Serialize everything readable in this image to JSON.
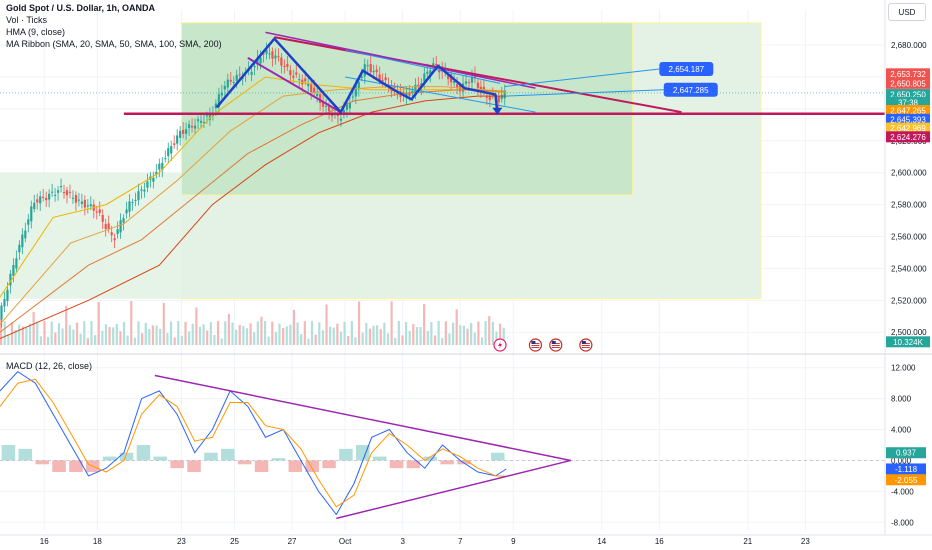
{
  "header": {
    "title": "Gold Spot / U.S. Dollar, 1h, OANDA",
    "indicators": [
      "Vol · Ticks",
      "HMA (9, close)",
      "MA Ribbon (SMA, 20, SMA, 50, SMA, 100, SMA, 200)"
    ],
    "currency_button": "USD"
  },
  "colors": {
    "up": "#26a69a",
    "down": "#ef5350",
    "zone_fill": "#c8e6c9",
    "zone_border": "#fff59d",
    "support": "#c2185b",
    "wedge": "#9c27b0",
    "hma": "#2962ff",
    "channel": "#2196f3",
    "macd_line": "#2962ff",
    "signal_line": "#ff9800",
    "triangle": "#9c27b0"
  },
  "chart_data": [
    {
      "type": "line",
      "name": "price",
      "ylim": [
        2492,
        2702
      ],
      "x_range": [
        0,
        100
      ],
      "y_ticks": [
        2500,
        2520,
        2540,
        2560,
        2580,
        2600,
        2620,
        2640,
        2660,
        2680
      ],
      "y_tick_labels": [
        "2,500.000",
        "2,520.000",
        "2,540.000",
        "2,560.000",
        "2,580.000",
        "2,600.000",
        "2,620.000",
        "2,640.000",
        "2,660.000",
        "2,680.000"
      ],
      "x_ticks": [
        {
          "x": 5,
          "label": "16"
        },
        {
          "x": 11,
          "label": "18"
        },
        {
          "x": 20.5,
          "label": "23"
        },
        {
          "x": 26.5,
          "label": "25"
        },
        {
          "x": 33,
          "label": "27"
        },
        {
          "x": 39,
          "label": "Oct"
        },
        {
          "x": 45.5,
          "label": "3"
        },
        {
          "x": 52,
          "label": "7"
        },
        {
          "x": 58,
          "label": "9"
        },
        {
          "x": 68,
          "label": "14"
        },
        {
          "x": 74.5,
          "label": "16"
        },
        {
          "x": 84.5,
          "label": "21"
        },
        {
          "x": 91,
          "label": "23"
        }
      ],
      "price_path": [
        [
          0,
          2508
        ],
        [
          2,
          2548
        ],
        [
          4,
          2582
        ],
        [
          5.5,
          2585
        ],
        [
          7,
          2590
        ],
        [
          9,
          2582
        ],
        [
          11,
          2577
        ],
        [
          13,
          2558
        ],
        [
          14.5,
          2578
        ],
        [
          16,
          2588
        ],
        [
          18,
          2602
        ],
        [
          19,
          2612
        ],
        [
          20.5,
          2625
        ],
        [
          22,
          2630
        ],
        [
          24,
          2636
        ],
        [
          25.5,
          2655
        ],
        [
          27,
          2660
        ],
        [
          28.5,
          2664
        ],
        [
          30,
          2676
        ],
        [
          31.5,
          2672
        ],
        [
          33,
          2662
        ],
        [
          35,
          2655
        ],
        [
          37,
          2640
        ],
        [
          38.5,
          2634
        ],
        [
          40,
          2648
        ],
        [
          41.5,
          2668
        ],
        [
          43,
          2660
        ],
        [
          44.5,
          2652
        ],
        [
          46,
          2648
        ],
        [
          47.5,
          2655
        ],
        [
          49,
          2668
        ],
        [
          50.5,
          2662
        ],
        [
          52,
          2652
        ],
        [
          53.5,
          2660
        ],
        [
          55,
          2648
        ],
        [
          56.5,
          2646
        ],
        [
          57.2,
          2650
        ]
      ],
      "ma_ribbon": [
        {
          "name": "SMA 20",
          "color": "#f0b400",
          "values": [
            [
              0,
              2522
            ],
            [
              6,
              2572
            ],
            [
              12,
              2580
            ],
            [
              18,
              2600
            ],
            [
              24,
              2636
            ],
            [
              30,
              2660
            ],
            [
              36,
              2655
            ],
            [
              42,
              2652
            ],
            [
              48,
              2652
            ],
            [
              54,
              2652
            ],
            [
              57.2,
              2650
            ]
          ]
        },
        {
          "name": "SMA 50",
          "color": "#e6a23c",
          "values": [
            [
              0,
              2505
            ],
            [
              8,
              2556
            ],
            [
              14,
              2568
            ],
            [
              20,
              2595
            ],
            [
              26,
              2626
            ],
            [
              32,
              2648
            ],
            [
              38,
              2652
            ],
            [
              44,
              2654
            ],
            [
              50,
              2654
            ],
            [
              57.2,
              2651
            ]
          ]
        },
        {
          "name": "SMA 100",
          "color": "#e07b39",
          "values": [
            [
              0,
              2500
            ],
            [
              10,
              2542
            ],
            [
              16,
              2558
            ],
            [
              22,
              2585
            ],
            [
              28,
              2612
            ],
            [
              34,
              2630
            ],
            [
              40,
              2645
            ],
            [
              46,
              2650
            ],
            [
              52,
              2652
            ],
            [
              57.2,
              2651
            ]
          ]
        },
        {
          "name": "SMA 200",
          "color": "#d84315",
          "values": [
            [
              0,
              2496
            ],
            [
              10,
              2520
            ],
            [
              18,
              2542
            ],
            [
              24,
              2580
            ],
            [
              30,
              2605
            ],
            [
              36,
              2625
            ],
            [
              42,
              2638
            ],
            [
              48,
              2645
            ],
            [
              54,
              2648
            ],
            [
              57.2,
              2648
            ]
          ]
        }
      ],
      "annotations": {
        "zone_outer": {
          "x1": 20.5,
          "x2": 86,
          "y1": 2521,
          "y2": 2694
        },
        "zone_inner": {
          "x1": 20.5,
          "x2": 71.5,
          "y1": 2586,
          "y2": 2694
        },
        "support_line": {
          "x1": 14,
          "x2": 100,
          "y": 2637
        },
        "resistance_line": {
          "x1": 31,
          "y1": 2685,
          "x2": 77,
          "y2": 2638
        },
        "wedge_upper": {
          "x1": 30,
          "y1": 2688,
          "x2": 60.5,
          "y2": 2653
        },
        "wedge_lower": {
          "x1": 28,
          "y1": 2672,
          "x2": 38.5,
          "y2": 2638
        },
        "zigzag": [
          [
            24.5,
            2641
          ],
          [
            31,
            2684
          ],
          [
            38.5,
            2638
          ],
          [
            41,
            2664
          ],
          [
            44.5,
            2652
          ],
          [
            46.5,
            2646
          ],
          [
            49.5,
            2667
          ],
          [
            52.5,
            2653
          ],
          [
            56,
            2649
          ]
        ],
        "channel_upper": {
          "x1": 39,
          "y1": 2677,
          "x2": 56.5,
          "y2": 2656
        },
        "channel_lower": {
          "x1": 39,
          "y1": 2660,
          "x2": 60.5,
          "y2": 2638
        },
        "projection_1": {
          "x1": 57,
          "y1": 2654,
          "x2": 74.5,
          "y2": 2665,
          "label": "2,654.187"
        },
        "projection_2": {
          "x1": 57,
          "y1": 2648,
          "x2": 75,
          "y2": 2652,
          "label": "2,647.285"
        },
        "arrow_down": {
          "x1": 56,
          "y1": 2649,
          "x2": 56.2,
          "y2": 2637
        }
      },
      "price_tags": [
        {
          "label": "2,653.732",
          "value": 2662,
          "bg": "#ef5350"
        },
        {
          "label": "2,650.805",
          "value": 2656,
          "bg": "#ef5350"
        },
        {
          "label": "2,650.250",
          "value": 2649,
          "bg": "#26a69a"
        },
        {
          "label": "37:38",
          "value": 2644,
          "bg": "#26a69a"
        },
        {
          "label": "2,647.265",
          "value": 2639,
          "bg": "#ff9800"
        },
        {
          "label": "2,645.393",
          "value": 2633.5,
          "bg": "#2962ff"
        },
        {
          "label": "2,642.969",
          "value": 2628,
          "bg": "#fbc02d"
        },
        {
          "label": "2,624.276",
          "value": 2622.5,
          "bg": "#c2185b"
        },
        {
          "label": "10.324K",
          "value": 2494,
          "bg": "#26a69a"
        }
      ],
      "event_markers": [
        {
          "x": 56.5,
          "type": "flash"
        },
        {
          "x": 60.5,
          "type": "us-flag"
        },
        {
          "x": 62.8,
          "type": "us-flag"
        },
        {
          "x": 66.2,
          "type": "us-flag"
        }
      ]
    },
    {
      "type": "line",
      "name": "macd",
      "title": "MACD (12, 26, close)",
      "ylim": [
        -9,
        13
      ],
      "y_ticks": [
        12,
        8,
        4,
        0,
        -4,
        -8
      ],
      "y_tick_labels": [
        "12.000",
        "8.000",
        "4.000",
        "0.000",
        "-4.000",
        "-8.000"
      ],
      "series": [
        {
          "name": "MACD",
          "color": "#2962ff",
          "values": [
            [
              0,
              9
            ],
            [
              2,
              11.5
            ],
            [
              4,
              10
            ],
            [
              6,
              6
            ],
            [
              8,
              2
            ],
            [
              10,
              -2
            ],
            [
              12,
              -1
            ],
            [
              14,
              1
            ],
            [
              16,
              8
            ],
            [
              18,
              9
            ],
            [
              20,
              6
            ],
            [
              22,
              1
            ],
            [
              24,
              4
            ],
            [
              26,
              9
            ],
            [
              28,
              7
            ],
            [
              30,
              3
            ],
            [
              32,
              4
            ],
            [
              34,
              0
            ],
            [
              36,
              -4
            ],
            [
              38,
              -7
            ],
            [
              40,
              -3
            ],
            [
              42,
              3
            ],
            [
              44,
              4
            ],
            [
              46,
              1
            ],
            [
              48,
              -1
            ],
            [
              50,
              2
            ],
            [
              52,
              0
            ],
            [
              54,
              -1.5
            ],
            [
              56,
              -2
            ],
            [
              57.2,
              -1.1
            ]
          ]
        },
        {
          "name": "Signal",
          "color": "#ff9800",
          "values": [
            [
              0,
              7
            ],
            [
              2,
              10
            ],
            [
              4,
              10.5
            ],
            [
              6,
              7.5
            ],
            [
              8,
              3.5
            ],
            [
              10,
              -0.5
            ],
            [
              12,
              -1.5
            ],
            [
              14,
              0
            ],
            [
              16,
              6
            ],
            [
              18,
              8.5
            ],
            [
              20,
              7
            ],
            [
              22,
              2.5
            ],
            [
              24,
              3
            ],
            [
              26,
              7.5
            ],
            [
              28,
              7.5
            ],
            [
              30,
              4.5
            ],
            [
              32,
              4
            ],
            [
              34,
              1.5
            ],
            [
              36,
              -2.5
            ],
            [
              38,
              -6
            ],
            [
              40,
              -4.5
            ],
            [
              42,
              1
            ],
            [
              44,
              3.5
            ],
            [
              46,
              2
            ],
            [
              48,
              0
            ],
            [
              50,
              1.5
            ],
            [
              52,
              0.5
            ],
            [
              54,
              -1
            ],
            [
              56,
              -2
            ],
            [
              57.2,
              -2.05
            ]
          ]
        }
      ],
      "histogram": [
        2,
        1.5,
        -0.5,
        -1.5,
        -1.5,
        -1.5,
        0.5,
        1,
        2,
        0.5,
        -1,
        -1.5,
        1,
        1.5,
        -0.5,
        -1.5,
        0.3,
        -1.5,
        -1.5,
        -1,
        1.5,
        2,
        0.5,
        -1,
        -1,
        0.5,
        -0.5,
        -0.5,
        0,
        1
      ],
      "triangle_upper": {
        "x1": 17.5,
        "y1": 11,
        "x2": 64.5,
        "y2": 0
      },
      "triangle_lower": {
        "x1": 38,
        "y1": -7.5,
        "x2": 64.5,
        "y2": 0
      },
      "value_tags": [
        {
          "label": "0.937",
          "value": 1,
          "bg": "#26a69a"
        },
        {
          "label": "-1.118",
          "value": -1.1,
          "bg": "#2962ff"
        },
        {
          "label": "-2.055",
          "value": -2.5,
          "bg": "#ff9800"
        }
      ]
    }
  ]
}
